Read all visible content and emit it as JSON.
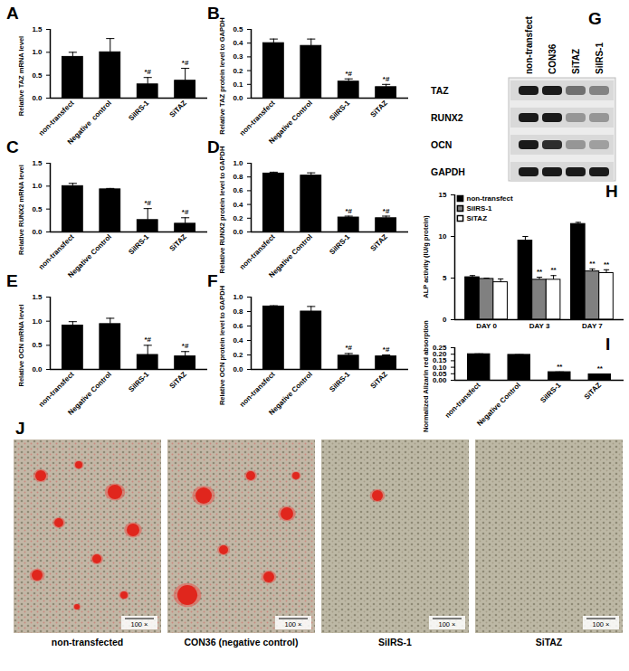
{
  "chart_data": [
    {
      "type": "bar",
      "title": "A",
      "ylabel": "Relative TAZ mRNA level",
      "categories": [
        "non-transfect",
        "Negative  control",
        "SiIRS-1",
        "SiTAZ"
      ],
      "values": [
        0.9,
        1.0,
        0.3,
        0.38
      ],
      "errors": [
        0.1,
        0.3,
        0.15,
        0.27
      ],
      "annotations": [
        null,
        null,
        "*#",
        "*#"
      ],
      "color": "#000000",
      "ylim": [
        0,
        1.5
      ],
      "yticks": [
        {
          "value": 0,
          "label": "0.0"
        },
        {
          "value": 0.5,
          "label": "0.5"
        },
        {
          "value": 1,
          "label": "1.0"
        },
        {
          "value": 1.5,
          "label": "1.5"
        }
      ]
    },
    {
      "type": "bar",
      "title": "B",
      "ylabel": "Relative TAZ protein level to GAPDH",
      "categories": [
        "non-transfect",
        "Negative Control",
        "SiIRS-1",
        "SiTAZ"
      ],
      "values": [
        0.4,
        0.38,
        0.12,
        0.08
      ],
      "errors": [
        0.03,
        0.05,
        0.02,
        0.02
      ],
      "annotations": [
        null,
        null,
        "*#",
        "*#"
      ],
      "color": "#000000",
      "ylim": [
        0,
        0.5
      ],
      "yticks": [
        {
          "value": 0,
          "label": "0.0"
        },
        {
          "value": 0.1,
          "label": "0.1"
        },
        {
          "value": 0.2,
          "label": "0.2"
        },
        {
          "value": 0.3,
          "label": "0.3"
        },
        {
          "value": 0.4,
          "label": "0.4"
        },
        {
          "value": 0.5,
          "label": "0.5"
        }
      ]
    },
    {
      "type": "bar",
      "title": "C",
      "ylabel": "Relative RUNX2 mRNA level",
      "categories": [
        "non-transfect",
        "Negative Control",
        "SiIRS-1",
        "SiTAZ"
      ],
      "values": [
        1.0,
        0.93,
        0.26,
        0.18
      ],
      "errors": [
        0.06,
        0.02,
        0.25,
        0.13
      ],
      "annotations": [
        null,
        null,
        "*#",
        "*#"
      ],
      "color": "#000000",
      "ylim": [
        0,
        1.5
      ],
      "yticks": [
        {
          "value": 0,
          "label": "0.0"
        },
        {
          "value": 0.5,
          "label": "0.5"
        },
        {
          "value": 1,
          "label": "1.0"
        },
        {
          "value": 1.5,
          "label": "1.5"
        }
      ]
    },
    {
      "type": "bar",
      "title": "D",
      "ylabel": "Relative RUNX2 protein level to GAPDH",
      "categories": [
        "non-transfect",
        "Negative Control",
        "SiIRS-1",
        "SiTAZ"
      ],
      "values": [
        0.85,
        0.82,
        0.21,
        0.2
      ],
      "errors": [
        0.02,
        0.04,
        0.02,
        0.03
      ],
      "annotations": [
        null,
        null,
        "*#",
        "*#"
      ],
      "color": "#000000",
      "ylim": [
        0,
        1
      ],
      "yticks": [
        {
          "value": 0,
          "label": "0.0"
        },
        {
          "value": 0.2,
          "label": "0.2"
        },
        {
          "value": 0.4,
          "label": "0.4"
        },
        {
          "value": 0.6,
          "label": "0.6"
        },
        {
          "value": 0.8,
          "label": "0.8"
        },
        {
          "value": 1,
          "label": "1.0"
        }
      ]
    },
    {
      "type": "bar",
      "title": "E",
      "ylabel": "Relative OCN mRNA level",
      "categories": [
        "non-transfect",
        "Negative Control",
        "SiIRS-1",
        "SiTAZ"
      ],
      "values": [
        0.91,
        0.94,
        0.3,
        0.27
      ],
      "errors": [
        0.08,
        0.12,
        0.2,
        0.1
      ],
      "annotations": [
        null,
        null,
        "*#",
        "*#"
      ],
      "color": "#000000",
      "ylim": [
        0,
        1.5
      ],
      "yticks": [
        {
          "value": 0,
          "label": "0.0"
        },
        {
          "value": 0.5,
          "label": "0.5"
        },
        {
          "value": 1,
          "label": "1.0"
        },
        {
          "value": 1.5,
          "label": "1.5"
        }
      ]
    },
    {
      "type": "bar",
      "title": "F",
      "ylabel": "Relative OCN protein level to GAPDH",
      "categories": [
        "non-transfect",
        "Negative Control",
        "SiIRS-1",
        "SiTAZ"
      ],
      "values": [
        0.87,
        0.8,
        0.19,
        0.18
      ],
      "errors": [
        0.01,
        0.07,
        0.03,
        0.02
      ],
      "annotations": [
        null,
        null,
        "*#",
        "*#"
      ],
      "color": "#000000",
      "ylim": [
        0,
        1
      ],
      "yticks": [
        {
          "value": 0,
          "label": "0.0"
        },
        {
          "value": 0.2,
          "label": "0.2"
        },
        {
          "value": 0.4,
          "label": "0.4"
        },
        {
          "value": 0.6,
          "label": "0.6"
        },
        {
          "value": 0.8,
          "label": "0.8"
        },
        {
          "value": 1,
          "label": "1.0"
        }
      ]
    },
    {
      "type": "bar",
      "title": "H",
      "ylabel": "ALP activity (IU/g protein)",
      "categories": [
        "DAY 0",
        "DAY 3",
        "DAY 7"
      ],
      "series": [
        {
          "name": "non-transfect",
          "color": "#000000",
          "values": [
            5.1,
            9.5,
            11.5
          ],
          "errors": [
            0.2,
            0.5,
            0.2
          ],
          "annotations": [
            null,
            null,
            null
          ]
        },
        {
          "name": "SiIRS-1",
          "color": "#808080",
          "values": [
            4.9,
            4.8,
            5.8
          ],
          "errors": [
            0.1,
            0.3,
            0.3
          ],
          "annotations": [
            null,
            "**",
            "**"
          ]
        },
        {
          "name": "SiTAZ",
          "color": "#ffffff",
          "values": [
            4.5,
            4.8,
            5.6
          ],
          "errors": [
            0.4,
            0.5,
            0.4
          ],
          "annotations": [
            null,
            "**",
            "**"
          ]
        }
      ],
      "legend": "top-left",
      "ylim": [
        0,
        15
      ],
      "yticks": [
        0,
        5,
        10,
        15
      ]
    },
    {
      "type": "bar",
      "title": "I",
      "ylabel": "Normalized Alizarin red absorption",
      "categories": [
        "non-transfect",
        "Negative Control",
        "SiIRS-1",
        "SiTAZ"
      ],
      "values": [
        0.2,
        0.195,
        0.062,
        0.045
      ],
      "errors": [
        0.003,
        0.002,
        0.002,
        0.002
      ],
      "annotations": [
        null,
        null,
        "**",
        "**"
      ],
      "color": "#000000",
      "ylim": [
        0,
        0.25
      ],
      "yticks": [
        {
          "value": 0,
          "label": "0.00"
        },
        {
          "value": 0.05,
          "label": "0.05"
        },
        {
          "value": 0.1,
          "label": "0.10"
        },
        {
          "value": 0.15,
          "label": "0.15"
        },
        {
          "value": 0.2,
          "label": "0.20"
        },
        {
          "value": 0.25,
          "label": "0.25"
        }
      ]
    }
  ],
  "blot": {
    "title": "G",
    "columns": [
      "non-transfect",
      "CON36",
      "SiTAZ",
      "SiIRS-1"
    ],
    "rows": [
      {
        "label": "TAZ",
        "intensity": [
          1.0,
          1.0,
          0.55,
          0.45
        ]
      },
      {
        "label": "RUNX2",
        "intensity": [
          1.0,
          1.0,
          0.35,
          0.35
        ]
      },
      {
        "label": "OCN",
        "intensity": [
          1.0,
          0.9,
          0.35,
          0.3
        ]
      },
      {
        "label": "GAPDH",
        "intensity": [
          1.0,
          1.0,
          1.0,
          1.0
        ]
      }
    ]
  },
  "micrographs": {
    "title": "J",
    "scale_bar": "100 ×",
    "labels": [
      "non-transfected",
      "CON36 (negative control)",
      "SiIRS-1",
      "SiTAZ"
    ]
  }
}
